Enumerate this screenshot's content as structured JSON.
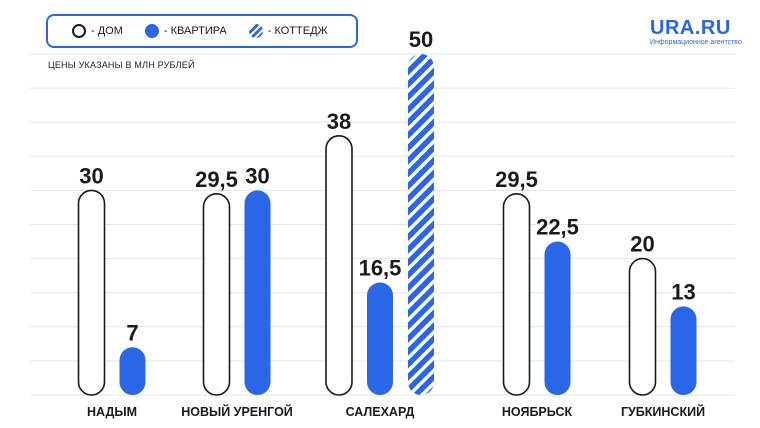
{
  "legend": {
    "house": "- ДОМ",
    "flat": "- КВАРТИРА",
    "cottage": "- КОТТЕДЖ"
  },
  "subtitle": "ЦЕНЫ УКАЗАНЫ В МЛН РУБЛЕЙ",
  "logo": {
    "title": "URA.RU",
    "subtitle": "Информационное агентство"
  },
  "colors": {
    "accent": "#2a66e8",
    "outline": "#1a1a1a",
    "grid": "#e6e6e6"
  },
  "chart_data": {
    "type": "bar",
    "categories": [
      "НАДЫМ",
      "НОВЫЙ УРЕНГОЙ",
      "САЛЕХАРД",
      "НОЯБРЬСК",
      "ГУБКИНСКИЙ"
    ],
    "series": [
      {
        "name": "- ДОМ",
        "style": "outline",
        "values": [
          30,
          29.5,
          38,
          29.5,
          20
        ],
        "labels": [
          "30",
          "29,5",
          "38",
          "29,5",
          "20"
        ]
      },
      {
        "name": "- КВАРТИРА",
        "style": "solid",
        "values": [
          7,
          30,
          16.5,
          22.5,
          13
        ],
        "labels": [
          "7",
          "30",
          "16,5",
          "22,5",
          "13"
        ]
      },
      {
        "name": "- КОТТЕДЖ",
        "style": "striped",
        "values": [
          null,
          null,
          50,
          null,
          null
        ],
        "labels": [
          null,
          null,
          "50",
          null,
          null
        ]
      }
    ],
    "ylim": [
      0,
      50
    ],
    "grid": true,
    "legend": "top-left"
  }
}
